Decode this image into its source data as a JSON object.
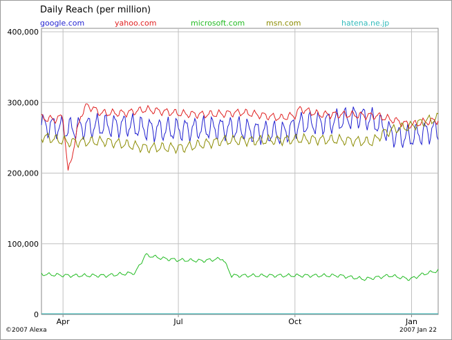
{
  "chart_data": {
    "type": "line",
    "title": "Daily Reach (per million)",
    "xlabel": "",
    "ylabel": "",
    "x_ticks": [
      "Apr",
      "Jul",
      "Oct",
      "Jan"
    ],
    "x_range": [
      "2006-03-15",
      "2007-01-22"
    ],
    "y_ticks": [
      "0",
      "100,000",
      "200,000",
      "300,000",
      "400,000"
    ],
    "ylim": [
      0,
      400000
    ],
    "grid": true,
    "legend_position": "top",
    "series": [
      {
        "name": "google.com",
        "color": "#1f1fd0",
        "x": [
          "2006-03-15",
          "2006-03-25",
          "2006-04-05",
          "2006-04-20",
          "2006-05-05",
          "2006-05-20",
          "2006-06-05",
          "2006-06-20",
          "2006-07-05",
          "2006-07-20",
          "2006-08-05",
          "2006-08-20",
          "2006-09-05",
          "2006-09-20",
          "2006-10-05",
          "2006-10-20",
          "2006-11-05",
          "2006-11-20",
          "2006-12-01",
          "2006-12-10",
          "2006-12-20",
          "2006-12-31",
          "2007-01-10",
          "2007-01-22"
        ],
        "y": [
          268000,
          266000,
          262000,
          266000,
          267000,
          268000,
          263000,
          261000,
          262000,
          263000,
          264000,
          262000,
          258000,
          256000,
          269000,
          271000,
          274000,
          281000,
          275000,
          264000,
          252000,
          251000,
          257000,
          262000
        ],
        "amp": 14000
      },
      {
        "name": "yahoo.com",
        "color": "#e02020",
        "x": [
          "2006-03-15",
          "2006-03-25",
          "2006-04-01",
          "2006-04-05",
          "2006-04-15",
          "2006-04-20",
          "2006-05-01",
          "2006-05-20",
          "2006-06-05",
          "2006-06-20",
          "2006-07-05",
          "2006-07-20",
          "2006-08-05",
          "2006-08-20",
          "2006-09-05",
          "2006-09-20",
          "2006-10-01",
          "2006-10-05",
          "2006-10-20",
          "2006-11-05",
          "2006-11-20",
          "2006-12-05",
          "2006-12-20",
          "2006-12-31",
          "2007-01-10",
          "2007-01-22"
        ],
        "y": [
          278000,
          276000,
          280000,
          200000,
          282000,
          296000,
          285000,
          285000,
          290000,
          287000,
          284000,
          283000,
          284000,
          286000,
          282000,
          278000,
          282000,
          291000,
          283000,
          283000,
          282000,
          281000,
          274000,
          268000,
          272000,
          275000
        ],
        "amp": 4500
      },
      {
        "name": "microsoft.com",
        "color": "#22bb22",
        "x": [
          "2006-03-15",
          "2006-04-05",
          "2006-05-05",
          "2006-05-28",
          "2006-06-05",
          "2006-06-20",
          "2006-07-01",
          "2006-07-20",
          "2006-08-05",
          "2006-08-12",
          "2006-09-05",
          "2006-10-05",
          "2006-11-05",
          "2006-11-25",
          "2006-12-15",
          "2006-12-31",
          "2007-01-10",
          "2007-01-22"
        ],
        "y": [
          57000,
          55000,
          55000,
          59000,
          84000,
          79000,
          77000,
          76000,
          79000,
          55000,
          55000,
          55000,
          55000,
          50000,
          55000,
          50000,
          57000,
          62000
        ],
        "amp": 2000
      },
      {
        "name": "msn.com",
        "color": "#8b8b00",
        "x": [
          "2006-03-15",
          "2006-04-05",
          "2006-05-05",
          "2006-06-05",
          "2006-07-05",
          "2006-08-05",
          "2006-09-05",
          "2006-10-05",
          "2006-11-05",
          "2006-12-01",
          "2006-12-10",
          "2006-12-20",
          "2006-12-31",
          "2007-01-10",
          "2007-01-22"
        ],
        "y": [
          252000,
          244000,
          245000,
          236000,
          236000,
          246000,
          246000,
          248000,
          247000,
          244000,
          257000,
          263000,
          266000,
          273000,
          278000
        ],
        "amp": 6000
      },
      {
        "name": "hatena.ne.jp",
        "color": "#33bbbb",
        "x": [
          "2006-03-15",
          "2007-01-22"
        ],
        "y": [
          1000,
          1000
        ],
        "amp": 0
      }
    ]
  },
  "footer": {
    "copyright": "©2007 Alexa",
    "date": "2007 Jan 22"
  }
}
